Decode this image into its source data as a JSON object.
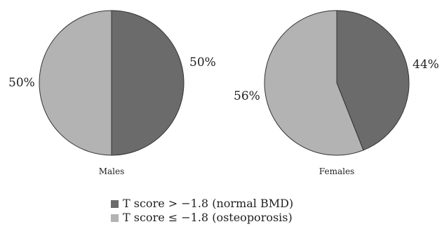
{
  "chart_data": [
    {
      "type": "pie",
      "title": "Males",
      "slices": [
        {
          "label": "T score > −1.8 (normal BMD)",
          "value": 50,
          "value_label": "50%",
          "color": "#6b6b6b"
        },
        {
          "label": "T score ≤ −1.8 (osteoporosis)",
          "value": 50,
          "value_label": "50%",
          "color": "#b3b3b3"
        }
      ]
    },
    {
      "type": "pie",
      "title": "Females",
      "slices": [
        {
          "label": "T score > −1.8 (normal BMD)",
          "value": 44,
          "value_label": "44%",
          "color": "#6b6b6b"
        },
        {
          "label": "T score ≤ −1.8 (osteoporosis)",
          "value": 56,
          "value_label": "56%",
          "color": "#b3b3b3"
        }
      ]
    }
  ],
  "legend": {
    "placement": "bottom-center",
    "items": [
      {
        "label": "T score > −1.8 (normal BMD)",
        "color": "#6b6b6b"
      },
      {
        "label": "T score ≤ −1.8 (osteoporosis)",
        "color": "#b3b3b3"
      }
    ]
  }
}
